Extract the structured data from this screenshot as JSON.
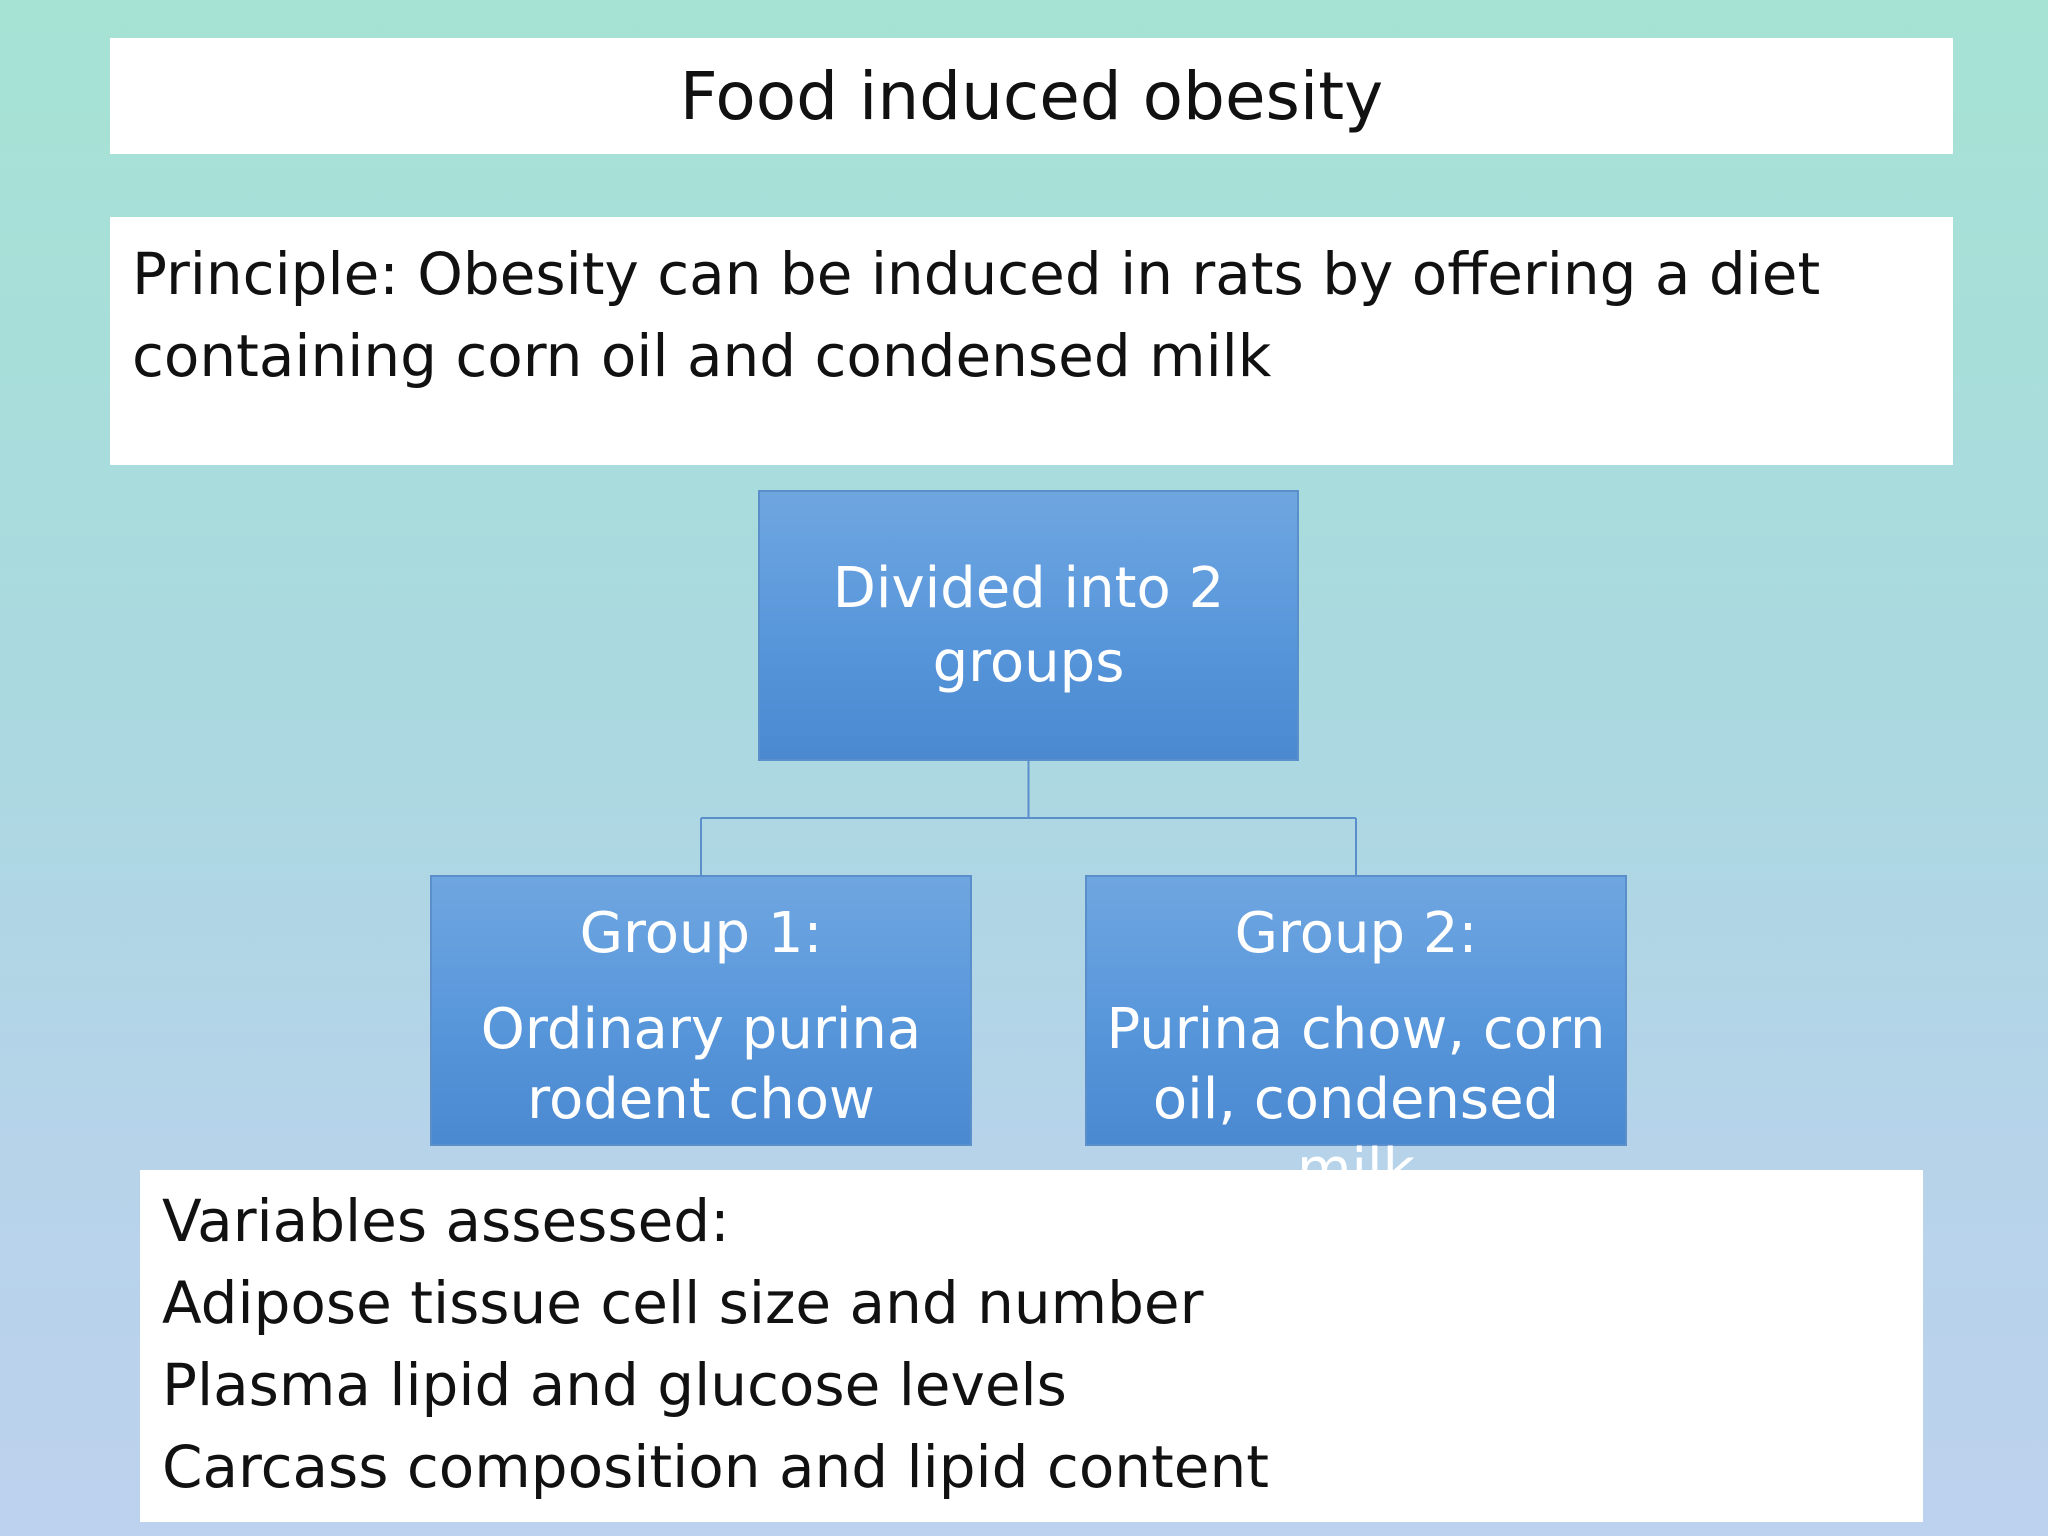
{
  "slide": {
    "title": "Food induced obesity",
    "principle": "Principle: Obesity can be induced in rats by offering a diet containing corn oil and condensed milk"
  },
  "diagram": {
    "root": "Divided into 2 groups",
    "groups": [
      {
        "title": "Group 1:",
        "description": "Ordinary purina rodent chow"
      },
      {
        "title": "Group 2:",
        "description": "Purina chow, corn oil, condensed milk"
      }
    ]
  },
  "variables": {
    "heading": "Variables assessed:",
    "items": [
      "Adipose tissue cell size and number",
      "Plasma lipid and glucose levels",
      "Carcass composition and lipid content"
    ]
  },
  "colors": {
    "node_fill": "#5a98dc",
    "connector": "#5b8fcb"
  }
}
